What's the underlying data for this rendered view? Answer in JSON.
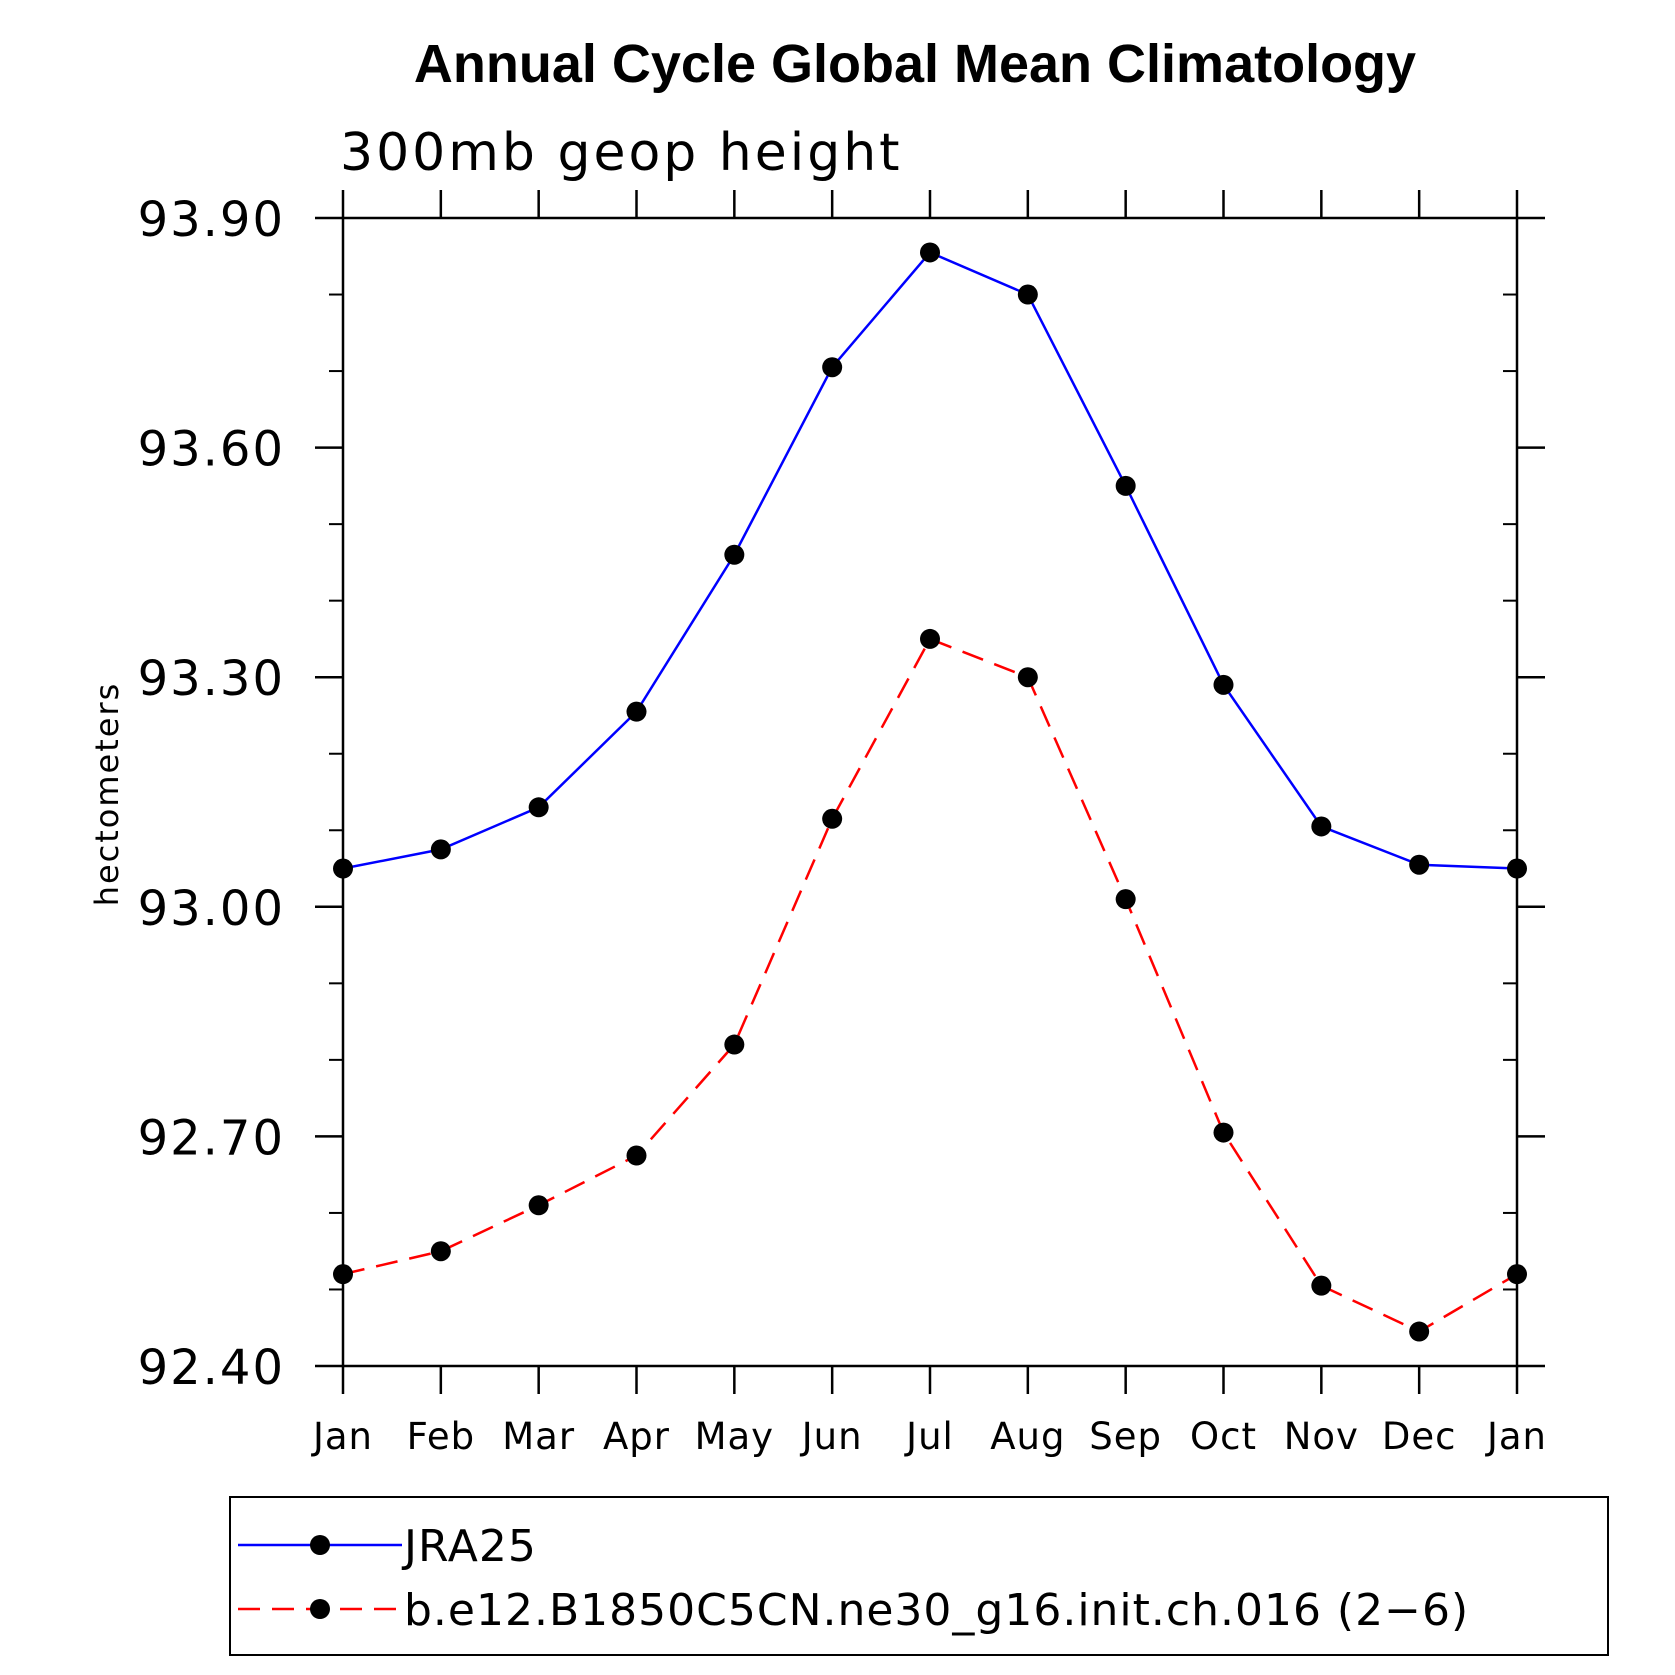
{
  "chart_data": {
    "type": "line",
    "title": "Annual Cycle Global Mean Climatology",
    "subtitle": "300mb geop height",
    "xlabel": "",
    "ylabel": "hectometers",
    "categories": [
      "Jan",
      "Feb",
      "Mar",
      "Apr",
      "May",
      "Jun",
      "Jul",
      "Aug",
      "Sep",
      "Oct",
      "Nov",
      "Dec",
      "Jan"
    ],
    "ylim": [
      92.4,
      93.9
    ],
    "yticks": [
      "93.90",
      "93.60",
      "93.30",
      "93.00",
      "92.70",
      "92.40"
    ],
    "ytick_values": [
      93.9,
      93.6,
      93.3,
      93.0,
      92.7,
      92.4
    ],
    "yminor_step": 0.1,
    "grid": false,
    "legend_position": "bottom",
    "series": [
      {
        "name": "JRA25",
        "color": "#0000ff",
        "dash": "solid",
        "marker": "circle",
        "values": [
          93.05,
          93.075,
          93.13,
          93.255,
          93.46,
          93.705,
          93.855,
          93.8,
          93.55,
          93.29,
          93.105,
          93.055,
          93.05
        ]
      },
      {
        "name": "b.e12.B1850C5CN.ne30_g16.init.ch.016 (2−6)",
        "color": "#ff0000",
        "dash": "dashed",
        "marker": "circle",
        "values": [
          92.52,
          92.55,
          92.61,
          92.675,
          92.82,
          93.115,
          93.35,
          93.3,
          93.01,
          92.705,
          92.505,
          92.445,
          92.52
        ]
      }
    ]
  }
}
